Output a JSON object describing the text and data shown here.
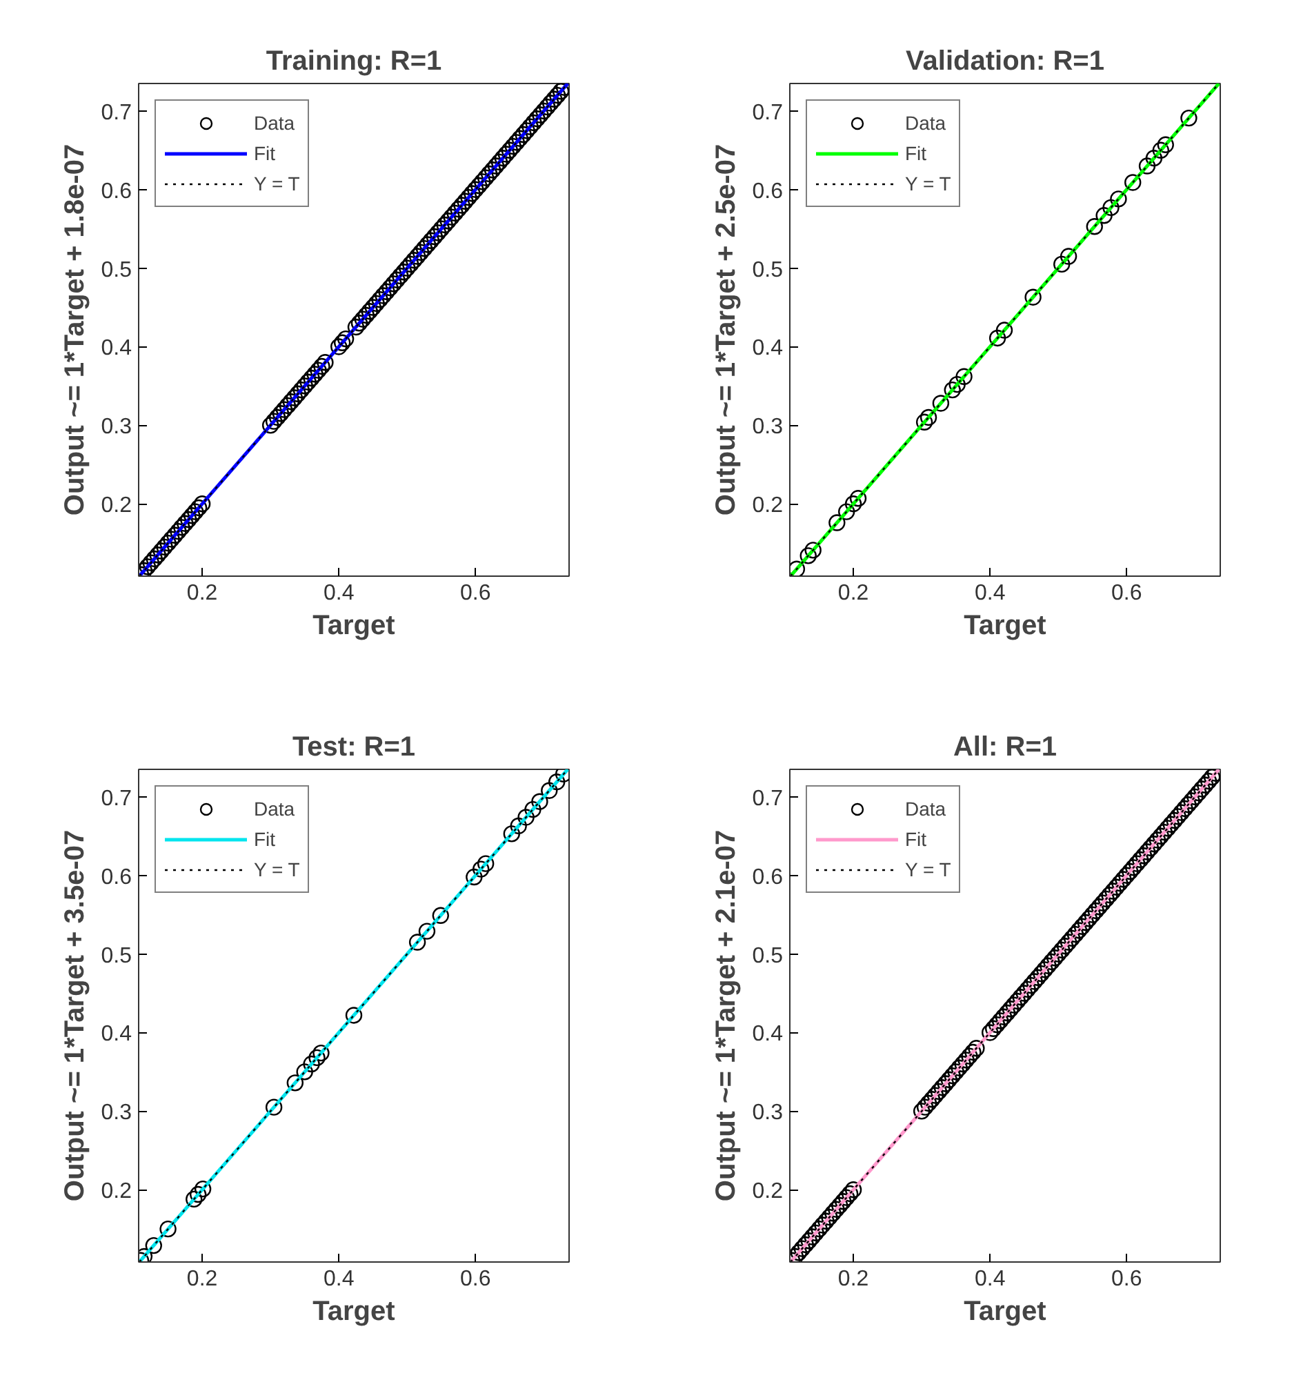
{
  "chart_data": [
    {
      "type": "scatter",
      "title": "Training: R=1",
      "xlabel": "Target",
      "ylabel": "Output ~= 1*Target + 1.8e-07",
      "xlim": [
        0.107,
        0.737
      ],
      "ylim": [
        0.108,
        0.735
      ],
      "xticks": [
        0.2,
        0.4,
        0.6
      ],
      "yticks": [
        0.2,
        0.3,
        0.4,
        0.5,
        0.6,
        0.7
      ],
      "legend": "top left",
      "series": [
        {
          "name": "Data",
          "type": "scatter",
          "marker": "circle",
          "color": "#000000",
          "x": [
            0.11,
            0.115,
            0.12,
            0.125,
            0.13,
            0.135,
            0.14,
            0.145,
            0.15,
            0.155,
            0.16,
            0.165,
            0.17,
            0.175,
            0.18,
            0.185,
            0.19,
            0.195,
            0.2,
            0.3,
            0.305,
            0.31,
            0.315,
            0.32,
            0.325,
            0.33,
            0.335,
            0.34,
            0.345,
            0.35,
            0.355,
            0.36,
            0.365,
            0.37,
            0.375,
            0.38,
            0.4,
            0.405,
            0.41,
            0.425,
            0.43,
            0.435,
            0.44,
            0.445,
            0.45,
            0.455,
            0.46,
            0.465,
            0.47,
            0.475,
            0.48,
            0.485,
            0.49,
            0.495,
            0.5,
            0.505,
            0.51,
            0.515,
            0.52,
            0.525,
            0.53,
            0.535,
            0.54,
            0.545,
            0.55,
            0.555,
            0.56,
            0.565,
            0.57,
            0.575,
            0.58,
            0.585,
            0.59,
            0.595,
            0.6,
            0.605,
            0.61,
            0.615,
            0.62,
            0.625,
            0.63,
            0.635,
            0.64,
            0.645,
            0.65,
            0.655,
            0.66,
            0.665,
            0.67,
            0.675,
            0.68,
            0.685,
            0.69,
            0.695,
            0.7,
            0.705,
            0.71,
            0.715,
            0.72,
            0.725,
            0.73
          ],
          "values": [
            0.11,
            0.115,
            0.12,
            0.125,
            0.13,
            0.135,
            0.14,
            0.145,
            0.15,
            0.155,
            0.16,
            0.165,
            0.17,
            0.175,
            0.18,
            0.185,
            0.19,
            0.195,
            0.2,
            0.3,
            0.305,
            0.31,
            0.315,
            0.32,
            0.325,
            0.33,
            0.335,
            0.34,
            0.345,
            0.35,
            0.355,
            0.36,
            0.365,
            0.37,
            0.375,
            0.38,
            0.4,
            0.405,
            0.41,
            0.425,
            0.43,
            0.435,
            0.44,
            0.445,
            0.45,
            0.455,
            0.46,
            0.465,
            0.47,
            0.475,
            0.48,
            0.485,
            0.49,
            0.495,
            0.5,
            0.505,
            0.51,
            0.515,
            0.52,
            0.525,
            0.53,
            0.535,
            0.54,
            0.545,
            0.55,
            0.555,
            0.56,
            0.565,
            0.57,
            0.575,
            0.58,
            0.585,
            0.59,
            0.595,
            0.6,
            0.605,
            0.61,
            0.615,
            0.62,
            0.625,
            0.63,
            0.635,
            0.64,
            0.645,
            0.65,
            0.655,
            0.66,
            0.665,
            0.67,
            0.675,
            0.68,
            0.685,
            0.69,
            0.695,
            0.7,
            0.705,
            0.71,
            0.715,
            0.72,
            0.725,
            0.73
          ]
        },
        {
          "name": "Fit",
          "type": "line",
          "color": "#0000ff",
          "x": [
            0.108,
            0.735
          ],
          "values": [
            0.108,
            0.735
          ]
        },
        {
          "name": "Y = T",
          "type": "line",
          "line_style": "dotted",
          "color": "#000000",
          "x": [
            0.108,
            0.735
          ],
          "values": [
            0.108,
            0.735
          ]
        }
      ]
    },
    {
      "type": "scatter",
      "title": "Validation: R=1",
      "xlabel": "Target",
      "ylabel": "Output ~= 1*Target + 2.5e-07",
      "xlim": [
        0.107,
        0.737
      ],
      "ylim": [
        0.108,
        0.735
      ],
      "xticks": [
        0.2,
        0.4,
        0.6
      ],
      "yticks": [
        0.2,
        0.3,
        0.4,
        0.5,
        0.6,
        0.7
      ],
      "legend": "top left",
      "series": [
        {
          "name": "Data",
          "type": "scatter",
          "marker": "circle",
          "color": "#000000",
          "x": [
            0.117,
            0.134,
            0.141,
            0.176,
            0.19,
            0.2,
            0.207,
            0.304,
            0.31,
            0.328,
            0.345,
            0.352,
            0.362,
            0.411,
            0.421,
            0.463,
            0.505,
            0.515,
            0.553,
            0.567,
            0.577,
            0.588,
            0.609,
            0.63,
            0.64,
            0.65,
            0.657,
            0.691
          ],
          "values": [
            0.117,
            0.134,
            0.141,
            0.176,
            0.19,
            0.2,
            0.207,
            0.304,
            0.31,
            0.328,
            0.345,
            0.352,
            0.362,
            0.411,
            0.421,
            0.463,
            0.505,
            0.515,
            0.553,
            0.567,
            0.577,
            0.588,
            0.609,
            0.63,
            0.64,
            0.65,
            0.657,
            0.691
          ]
        },
        {
          "name": "Fit",
          "type": "line",
          "color": "#00ff00",
          "x": [
            0.108,
            0.735
          ],
          "values": [
            0.108,
            0.735
          ]
        },
        {
          "name": "Y = T",
          "type": "line",
          "line_style": "dotted",
          "color": "#000000",
          "x": [
            0.108,
            0.735
          ],
          "values": [
            0.108,
            0.735
          ]
        }
      ]
    },
    {
      "type": "scatter",
      "title": "Test: R=1",
      "xlabel": "Target",
      "ylabel": "Output ~= 1*Target + 3.5e-07",
      "xlim": [
        0.107,
        0.737
      ],
      "ylim": [
        0.108,
        0.735
      ],
      "xticks": [
        0.2,
        0.4,
        0.6
      ],
      "yticks": [
        0.2,
        0.3,
        0.4,
        0.5,
        0.6,
        0.7
      ],
      "legend": "top left",
      "series": [
        {
          "name": "Data",
          "type": "scatter",
          "marker": "circle",
          "color": "#000000",
          "x": [
            0.11,
            0.115,
            0.129,
            0.15,
            0.188,
            0.194,
            0.201,
            0.305,
            0.336,
            0.35,
            0.36,
            0.368,
            0.374,
            0.422,
            0.515,
            0.529,
            0.549,
            0.598,
            0.608,
            0.615,
            0.653,
            0.663,
            0.674,
            0.684,
            0.694,
            0.708,
            0.719,
            0.729
          ],
          "values": [
            0.11,
            0.115,
            0.129,
            0.15,
            0.188,
            0.194,
            0.201,
            0.305,
            0.336,
            0.35,
            0.36,
            0.368,
            0.374,
            0.422,
            0.515,
            0.529,
            0.549,
            0.598,
            0.608,
            0.615,
            0.653,
            0.663,
            0.674,
            0.684,
            0.694,
            0.708,
            0.719,
            0.729
          ]
        },
        {
          "name": "Fit",
          "type": "line",
          "color": "#00e5ee",
          "x": [
            0.108,
            0.735
          ],
          "values": [
            0.108,
            0.735
          ]
        },
        {
          "name": "Y = T",
          "type": "line",
          "line_style": "dotted",
          "color": "#000000",
          "x": [
            0.108,
            0.735
          ],
          "values": [
            0.108,
            0.735
          ]
        }
      ]
    },
    {
      "type": "scatter",
      "title": "All: R=1",
      "xlabel": "Target",
      "ylabel": "Output ~= 1*Target + 2.1e-07",
      "xlim": [
        0.107,
        0.737
      ],
      "ylim": [
        0.108,
        0.735
      ],
      "xticks": [
        0.2,
        0.4,
        0.6
      ],
      "yticks": [
        0.2,
        0.3,
        0.4,
        0.5,
        0.6,
        0.7
      ],
      "legend": "top left",
      "series": [
        {
          "name": "Data",
          "type": "scatter",
          "marker": "circle",
          "color": "#000000",
          "x": [
            0.11,
            0.115,
            0.12,
            0.125,
            0.13,
            0.135,
            0.14,
            0.145,
            0.15,
            0.155,
            0.16,
            0.165,
            0.17,
            0.175,
            0.18,
            0.185,
            0.19,
            0.195,
            0.2,
            0.3,
            0.305,
            0.31,
            0.315,
            0.32,
            0.325,
            0.33,
            0.335,
            0.34,
            0.345,
            0.35,
            0.355,
            0.36,
            0.365,
            0.37,
            0.375,
            0.38,
            0.4,
            0.405,
            0.41,
            0.415,
            0.42,
            0.425,
            0.43,
            0.435,
            0.44,
            0.445,
            0.45,
            0.455,
            0.46,
            0.465,
            0.47,
            0.475,
            0.48,
            0.485,
            0.49,
            0.495,
            0.5,
            0.505,
            0.51,
            0.515,
            0.52,
            0.525,
            0.53,
            0.535,
            0.54,
            0.545,
            0.55,
            0.555,
            0.56,
            0.565,
            0.57,
            0.575,
            0.58,
            0.585,
            0.59,
            0.595,
            0.6,
            0.605,
            0.61,
            0.615,
            0.62,
            0.625,
            0.63,
            0.635,
            0.64,
            0.645,
            0.65,
            0.655,
            0.66,
            0.665,
            0.67,
            0.675,
            0.68,
            0.685,
            0.69,
            0.695,
            0.7,
            0.705,
            0.71,
            0.715,
            0.72,
            0.725,
            0.73
          ],
          "values": [
            0.11,
            0.115,
            0.12,
            0.125,
            0.13,
            0.135,
            0.14,
            0.145,
            0.15,
            0.155,
            0.16,
            0.165,
            0.17,
            0.175,
            0.18,
            0.185,
            0.19,
            0.195,
            0.2,
            0.3,
            0.305,
            0.31,
            0.315,
            0.32,
            0.325,
            0.33,
            0.335,
            0.34,
            0.345,
            0.35,
            0.355,
            0.36,
            0.365,
            0.37,
            0.375,
            0.38,
            0.4,
            0.405,
            0.41,
            0.415,
            0.42,
            0.425,
            0.43,
            0.435,
            0.44,
            0.445,
            0.45,
            0.455,
            0.46,
            0.465,
            0.47,
            0.475,
            0.48,
            0.485,
            0.49,
            0.495,
            0.5,
            0.505,
            0.51,
            0.515,
            0.52,
            0.525,
            0.53,
            0.535,
            0.54,
            0.545,
            0.55,
            0.555,
            0.56,
            0.565,
            0.57,
            0.575,
            0.58,
            0.585,
            0.59,
            0.595,
            0.6,
            0.605,
            0.61,
            0.615,
            0.62,
            0.625,
            0.63,
            0.635,
            0.64,
            0.645,
            0.65,
            0.655,
            0.66,
            0.665,
            0.67,
            0.675,
            0.68,
            0.685,
            0.69,
            0.695,
            0.7,
            0.705,
            0.71,
            0.715,
            0.72,
            0.725,
            0.73
          ]
        },
        {
          "name": "Fit",
          "type": "line",
          "color": "#ff99cc",
          "x": [
            0.108,
            0.735
          ],
          "values": [
            0.108,
            0.735
          ]
        },
        {
          "name": "Y = T",
          "type": "line",
          "line_style": "dotted",
          "color": "#000000",
          "x": [
            0.108,
            0.735
          ],
          "values": [
            0.108,
            0.735
          ]
        }
      ]
    }
  ]
}
